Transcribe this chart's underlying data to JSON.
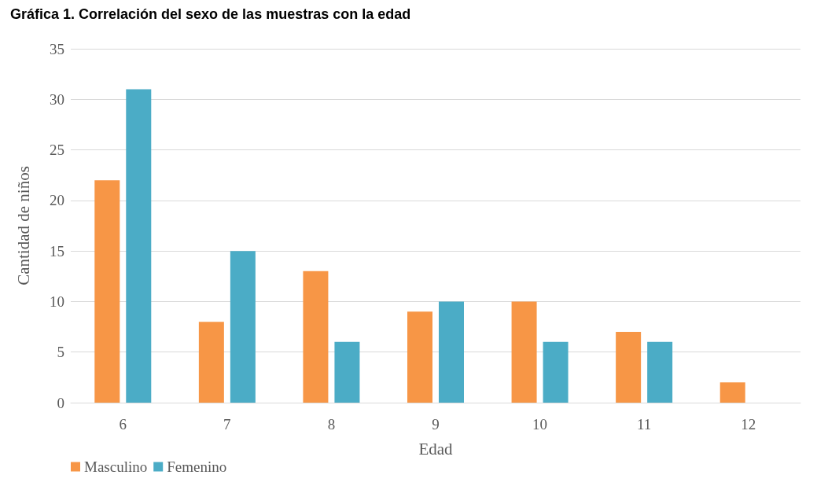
{
  "chart_data": {
    "type": "bar",
    "title": "Gráfica 1. Correlación del sexo de las muestras con la edad",
    "xlabel": "Edad",
    "ylabel": "Cantidad de niños",
    "categories": [
      "6",
      "7",
      "8",
      "9",
      "10",
      "11",
      "12"
    ],
    "series": [
      {
        "name": "Masculino",
        "color": "#f79646",
        "values": [
          22,
          8,
          13,
          9,
          10,
          7,
          2
        ]
      },
      {
        "name": "Femenino",
        "color": "#4bacc6",
        "values": [
          31,
          15,
          6,
          10,
          6,
          6,
          0
        ]
      }
    ],
    "ylim": [
      0,
      35
    ],
    "yticks": [
      0,
      5,
      10,
      15,
      20,
      25,
      30,
      35
    ],
    "grid": "y",
    "legend": "bottom left"
  }
}
